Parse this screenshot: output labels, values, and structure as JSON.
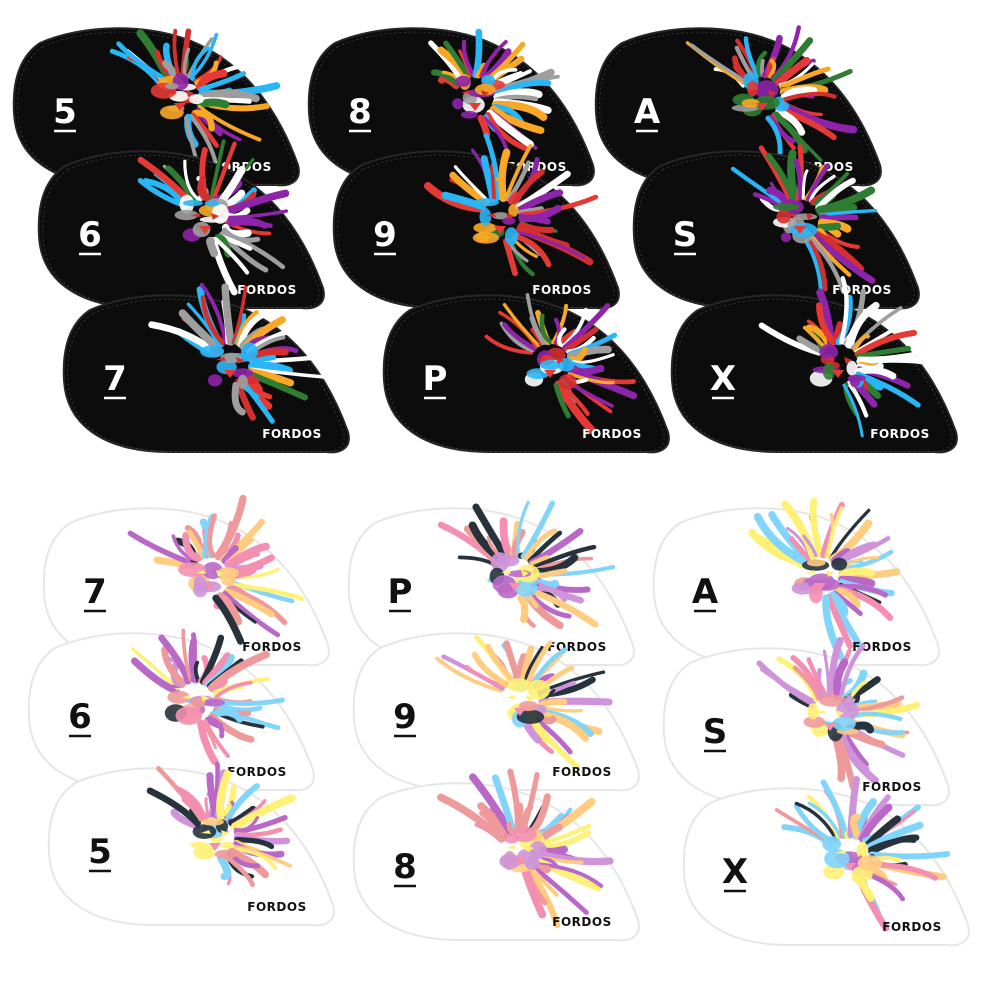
{
  "brand": "FORDOS",
  "colors": {
    "black_shell": "#0c0c0c",
    "black_edge": "#262626",
    "white_shell": "#ffffff",
    "white_edge": "#e6e6e6",
    "black_label_text": "#ffffff",
    "white_label_text": "#111111"
  },
  "black_covers": [
    {
      "label": "5"
    },
    {
      "label": "8"
    },
    {
      "label": "A"
    },
    {
      "label": "6"
    },
    {
      "label": "9"
    },
    {
      "label": "S"
    },
    {
      "label": "7"
    },
    {
      "label": "P"
    },
    {
      "label": "X"
    }
  ],
  "white_covers": [
    {
      "label": "7"
    },
    {
      "label": "P"
    },
    {
      "label": "A"
    },
    {
      "label": "6"
    },
    {
      "label": "9"
    },
    {
      "label": "S"
    },
    {
      "label": "5"
    },
    {
      "label": "8"
    },
    {
      "label": "X"
    }
  ],
  "lion_palettes": {
    "black": [
      "#e53935",
      "#2e7d32",
      "#f9a825",
      "#29b6f6",
      "#8e24aa",
      "#ffffff",
      "#9e9e9e",
      "#d32f2f"
    ],
    "white": [
      "#f48fb1",
      "#ba68c8",
      "#81d4fa",
      "#ffcc80",
      "#ef9a9a",
      "#26323c",
      "#ce93d8",
      "#fff176"
    ]
  }
}
